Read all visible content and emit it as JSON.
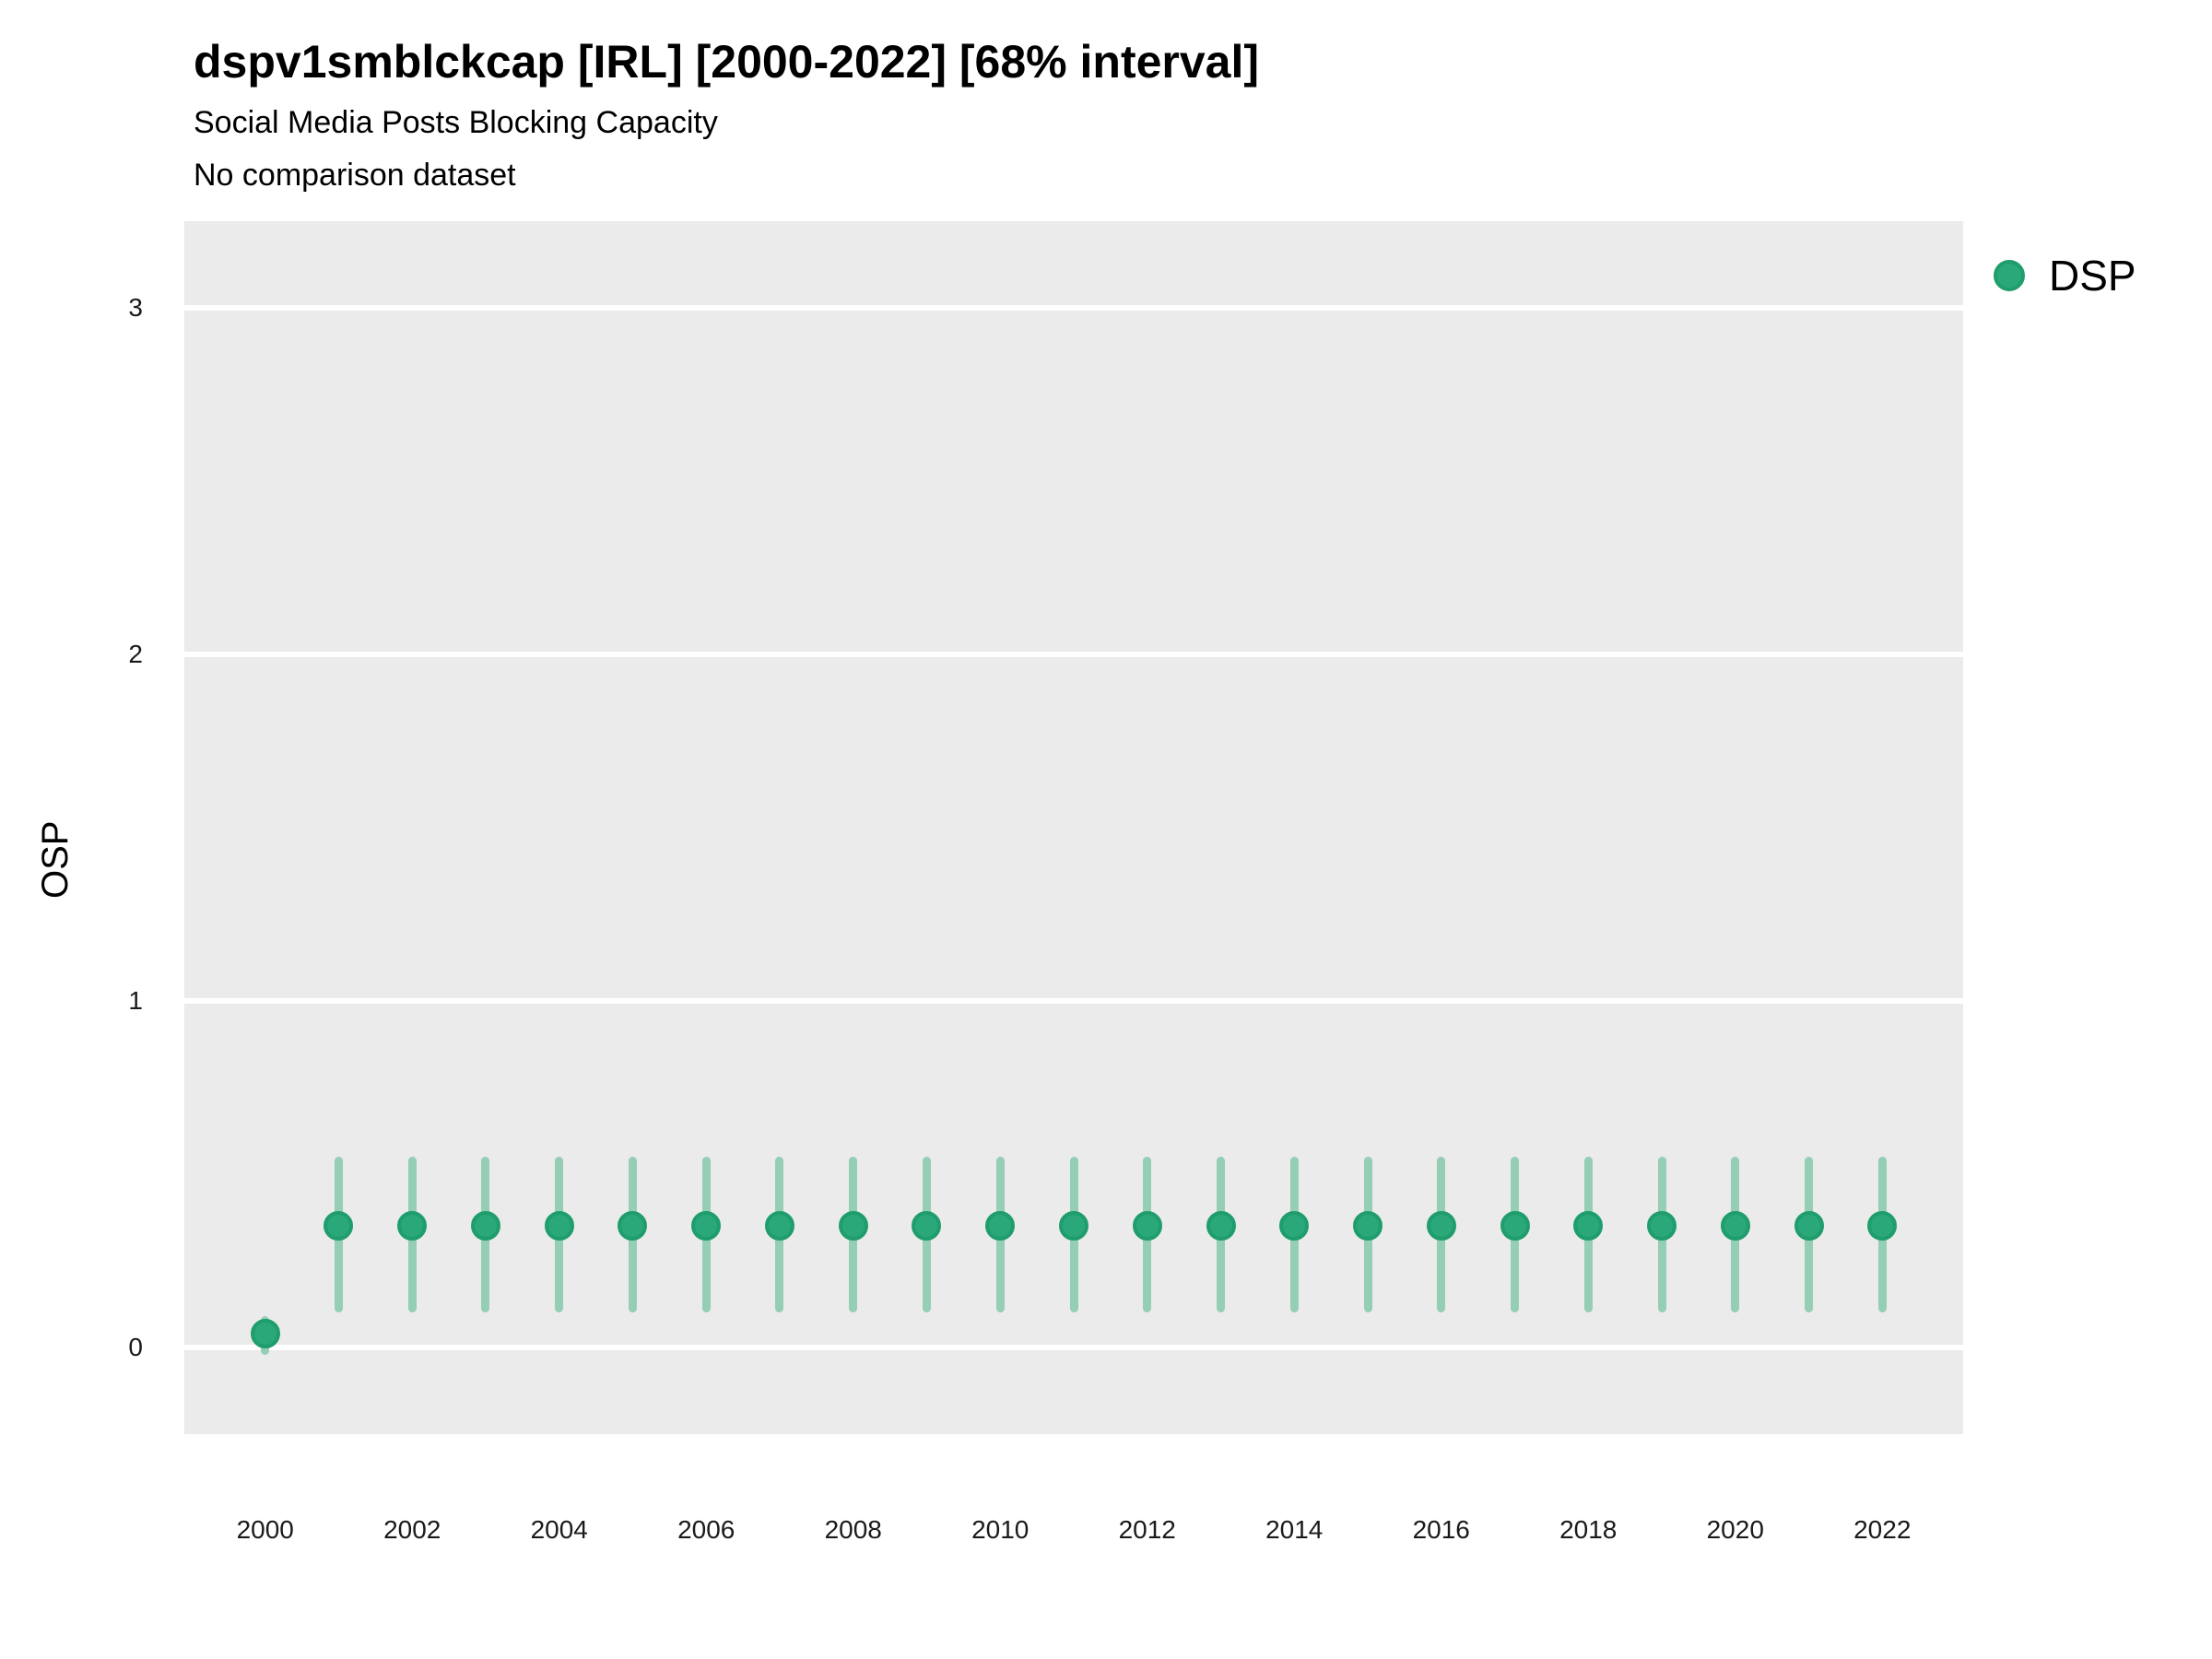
{
  "title": "dspv1smblckcap [IRL] [2000-2022] [68% interval]",
  "subtitle": "Social Media Posts Blocking Capacity",
  "note": "No comparison dataset",
  "legend": {
    "items": [
      {
        "label": "DSP"
      }
    ]
  },
  "colors": {
    "point_fill": "#2aa87a",
    "point_edge": "#1f9d6c",
    "interval": "#94ceb5",
    "panel_bg": "#ebebeb",
    "gridline": "#ffffff",
    "text": "#000000"
  },
  "chart_data": {
    "type": "scatter",
    "subtype": "pointrange",
    "title": "dspv1smblckcap [IRL] [2000-2022] [68% interval]",
    "subtitle": "Social Media Posts Blocking Capacity",
    "annotation": "No comparison dataset",
    "interval_level": "68%",
    "xlabel": "",
    "ylabel": "OSP",
    "xlim": [
      1998.9,
      2023.1
    ],
    "ylim": [
      -0.25,
      3.25
    ],
    "x_ticks": [
      2000,
      2002,
      2004,
      2006,
      2008,
      2010,
      2012,
      2014,
      2016,
      2018,
      2020,
      2022
    ],
    "y_ticks": [
      0,
      1,
      2,
      3
    ],
    "grid": "major-y-only",
    "legend_position": "right",
    "series": [
      {
        "name": "DSP",
        "x": [
          2000,
          2001,
          2002,
          2003,
          2004,
          2005,
          2006,
          2007,
          2008,
          2009,
          2010,
          2011,
          2012,
          2013,
          2014,
          2015,
          2016,
          2017,
          2018,
          2019,
          2020,
          2021,
          2022
        ],
        "mid": [
          0.04,
          0.35,
          0.35,
          0.35,
          0.35,
          0.35,
          0.35,
          0.35,
          0.35,
          0.35,
          0.35,
          0.35,
          0.35,
          0.35,
          0.35,
          0.35,
          0.35,
          0.35,
          0.35,
          0.35,
          0.35,
          0.35,
          0.35
        ],
        "lo": [
          -0.02,
          0.1,
          0.1,
          0.1,
          0.1,
          0.1,
          0.1,
          0.1,
          0.1,
          0.1,
          0.1,
          0.1,
          0.1,
          0.1,
          0.1,
          0.1,
          0.1,
          0.1,
          0.1,
          0.1,
          0.1,
          0.1,
          0.1
        ],
        "hi": [
          0.09,
          0.55,
          0.55,
          0.55,
          0.55,
          0.55,
          0.55,
          0.55,
          0.55,
          0.55,
          0.55,
          0.55,
          0.55,
          0.55,
          0.55,
          0.55,
          0.55,
          0.55,
          0.55,
          0.55,
          0.55,
          0.55,
          0.55
        ]
      }
    ]
  }
}
